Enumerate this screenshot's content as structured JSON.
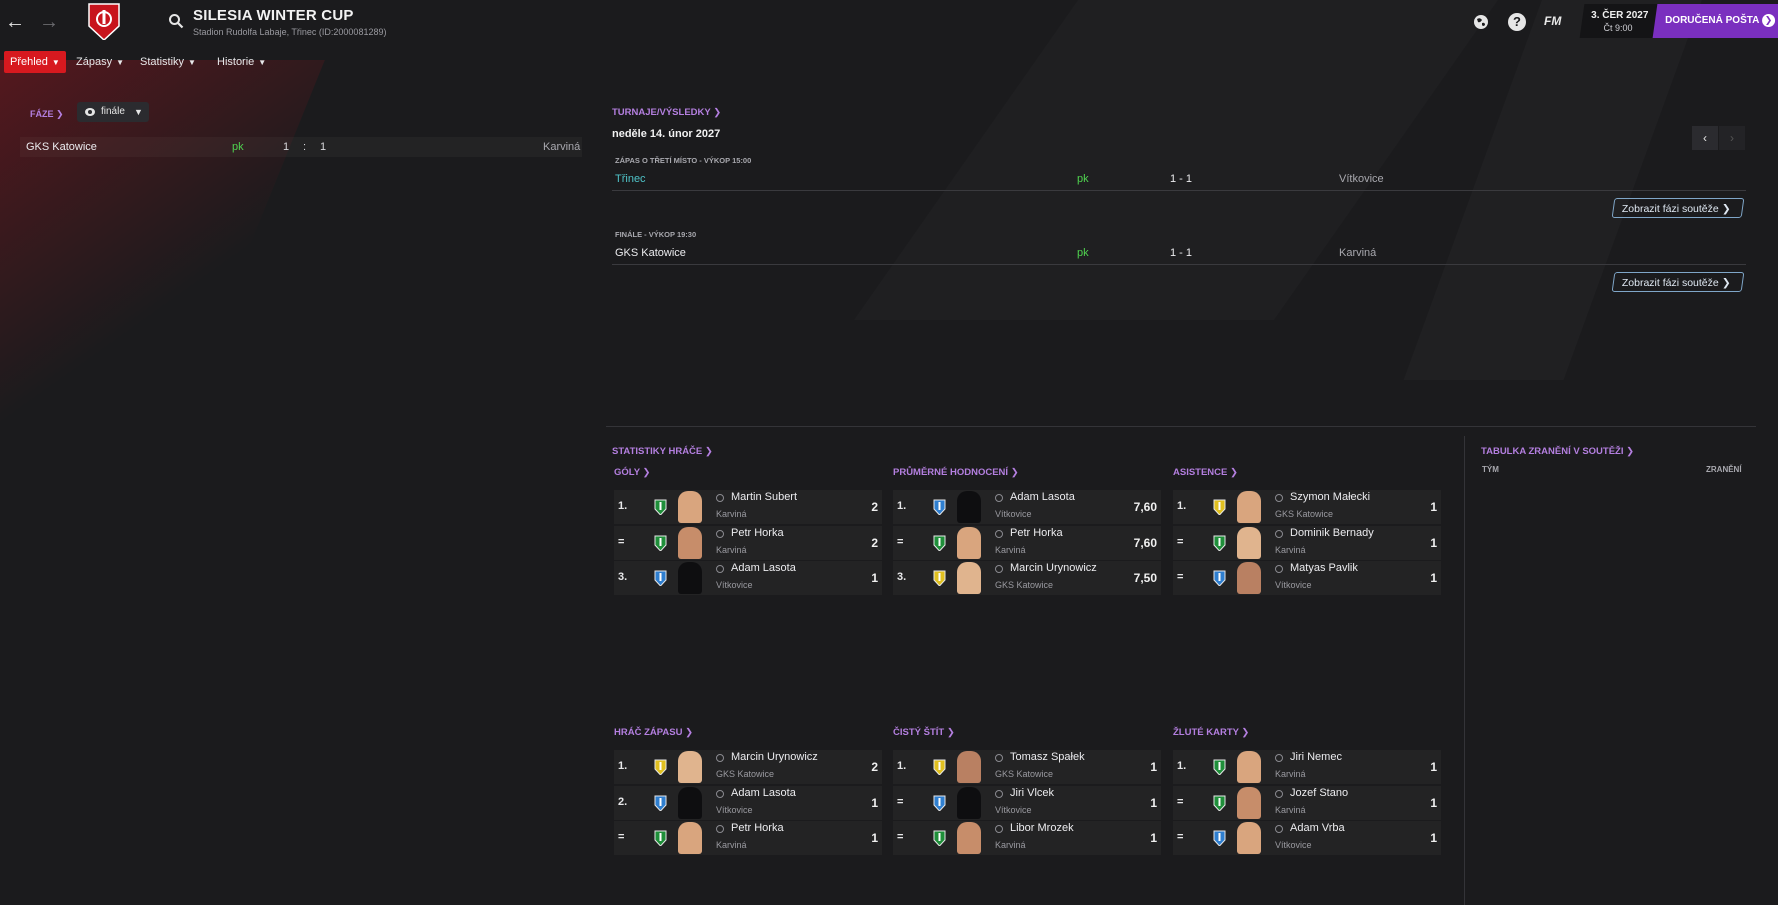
{
  "header": {
    "title": "SILESIA WINTER CUP",
    "subtitle": "Stadion Rudolfa Labaje, Třinec (ID:2000081289)",
    "date_line1": "3. ČER 2027",
    "date_line2": "Čt 9:00",
    "inbox_label": "DORUČENÁ POŠTA",
    "fm_label": "FM",
    "help_label": "?"
  },
  "menu": {
    "items": [
      {
        "label": "Přehled"
      },
      {
        "label": "Zápasy"
      },
      {
        "label": "Statistiky"
      },
      {
        "label": "Historie"
      }
    ]
  },
  "left": {
    "faze_label": "FÁZE",
    "faze_select": "finále",
    "match": {
      "home": "GKS Katowice",
      "pk": "pk",
      "home_score": "1",
      "sep": ":",
      "away_score": "1",
      "away": "Karviná"
    }
  },
  "results": {
    "heading": "TURNAJE/VÝSLEDKY",
    "date": "neděle 14. únor 2027",
    "matches": [
      {
        "sub": "ZÁPAS O TŘETÍ MÍSTO - VÝKOP 15:00",
        "home": "Třinec",
        "pk": "pk",
        "score": "1 - 1",
        "away": "Vítkovice",
        "button": "Zobrazit fázi soutěže"
      },
      {
        "sub": "FINÁLE - VÝKOP 19:30",
        "home": "GKS Katowice",
        "pk": "pk",
        "score": "1 - 1",
        "away": "Karviná",
        "button": "Zobrazit fázi soutěže"
      }
    ]
  },
  "stats": {
    "heading": "STATISTIKY HRÁČE",
    "blocks": [
      {
        "title": "GÓLY",
        "rows": [
          {
            "rank": "1.",
            "name": "Martin Subert",
            "club": "Karviná",
            "value": "2"
          },
          {
            "rank": "=",
            "name": "Petr Horka",
            "club": "Karviná",
            "value": "2"
          },
          {
            "rank": "3.",
            "name": "Adam Lasota",
            "club": "Vítkovice",
            "value": "1"
          }
        ]
      },
      {
        "title": "PRŮMĚRNÉ HODNOCENÍ",
        "rows": [
          {
            "rank": "1.",
            "name": "Adam Lasota",
            "club": "Vítkovice",
            "value": "7,60"
          },
          {
            "rank": "=",
            "name": "Petr Horka",
            "club": "Karviná",
            "value": "7,60"
          },
          {
            "rank": "3.",
            "name": "Marcin Urynowicz",
            "club": "GKS Katowice",
            "value": "7,50"
          }
        ]
      },
      {
        "title": "ASISTENCE",
        "rows": [
          {
            "rank": "1.",
            "name": "Szymon Małecki",
            "club": "GKS Katowice",
            "value": "1"
          },
          {
            "rank": "=",
            "name": "Dominik Bernady",
            "club": "Karviná",
            "value": "1"
          },
          {
            "rank": "=",
            "name": "Matyas Pavlik",
            "club": "Vítkovice",
            "value": "1"
          }
        ]
      },
      {
        "title": "HRÁČ ZÁPASU",
        "rows": [
          {
            "rank": "1.",
            "name": "Marcin Urynowicz",
            "club": "GKS Katowice",
            "value": "2"
          },
          {
            "rank": "2.",
            "name": "Adam Lasota",
            "club": "Vítkovice",
            "value": "1"
          },
          {
            "rank": "=",
            "name": "Petr Horka",
            "club": "Karviná",
            "value": "1"
          }
        ]
      },
      {
        "title": "ČISTÝ ŠTÍT",
        "rows": [
          {
            "rank": "1.",
            "name": "Tomasz Spałek",
            "club": "GKS Katowice",
            "value": "1"
          },
          {
            "rank": "=",
            "name": "Jiri Vlcek",
            "club": "Vítkovice",
            "value": "1"
          },
          {
            "rank": "=",
            "name": "Libor Mrozek",
            "club": "Karviná",
            "value": "1"
          }
        ]
      },
      {
        "title": "ŽLUTÉ KARTY",
        "rows": [
          {
            "rank": "1.",
            "name": "Jiri Nemec",
            "club": "Karviná",
            "value": "1"
          },
          {
            "rank": "=",
            "name": "Jozef Stano",
            "club": "Karviná",
            "value": "1"
          },
          {
            "rank": "=",
            "name": "Adam Vrba",
            "club": "Vítkovice",
            "value": "1"
          }
        ]
      }
    ]
  },
  "injuries": {
    "heading": "TABULKA ZRANĚNÍ V SOUTĚŽI",
    "col_team": "TÝM",
    "col_injuries": "ZRANĚNÍ"
  },
  "colors": {
    "accent_purple": "#b47fe0",
    "menu_active": "#d7191f",
    "inbox": "#7a2fbf",
    "pk_green": "#4fd34f",
    "link_teal": "#4fc3c8",
    "karvina": "#1f8f3a",
    "vitkovice": "#2f7fd0",
    "katowice": "#e0c020"
  }
}
